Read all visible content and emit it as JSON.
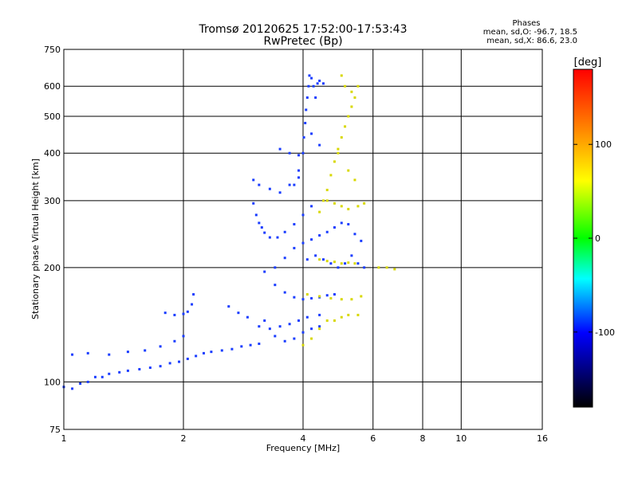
{
  "chart_data": {
    "type": "scatter",
    "title": "Tromsø 20120625 17:52:00-17:53:43",
    "subtitle": "RwPretec (Bp)",
    "xlabel": "Frequency [MHz]",
    "ylabel": "Stationary phase Virtual Height [km]",
    "x_scale": "log",
    "y_scale": "log",
    "xlim": [
      1,
      16
    ],
    "ylim": [
      75,
      750
    ],
    "x_ticks": [
      "1",
      "2",
      "4",
      "6",
      "8",
      "10",
      "16"
    ],
    "y_ticks": [
      "75",
      "100",
      "200",
      "300",
      "400",
      "500",
      "600",
      "750"
    ],
    "grid": true,
    "phase_stats": {
      "heading": "Phases",
      "line_o": "mean, sd,O: -96.7, 18.5",
      "line_x": "mean, sd,X:  86.6, 23.0"
    },
    "colorbar": {
      "label": "[deg]",
      "min": -180,
      "max": 180,
      "ticks": [
        "100",
        "0",
        "-100"
      ],
      "colors": [
        "#ff0000",
        "#ff8000",
        "#ffff00",
        "#00ff00",
        "#00ffff",
        "#0000ff",
        "#000000"
      ]
    },
    "series": [
      {
        "name": "O",
        "color": "#1a3dff",
        "points": [
          [
            1.0,
            97
          ],
          [
            1.05,
            96
          ],
          [
            1.1,
            99
          ],
          [
            1.15,
            100
          ],
          [
            1.2,
            103
          ],
          [
            1.25,
            103
          ],
          [
            1.3,
            105
          ],
          [
            1.38,
            106
          ],
          [
            1.45,
            107
          ],
          [
            1.55,
            108
          ],
          [
            1.65,
            109
          ],
          [
            1.75,
            110
          ],
          [
            1.85,
            112
          ],
          [
            1.95,
            113
          ],
          [
            2.05,
            115
          ],
          [
            2.15,
            117
          ],
          [
            2.25,
            119
          ],
          [
            2.35,
            120
          ],
          [
            2.5,
            121
          ],
          [
            2.65,
            122
          ],
          [
            2.8,
            124
          ],
          [
            2.95,
            125
          ],
          [
            3.1,
            126
          ],
          [
            1.05,
            118
          ],
          [
            1.15,
            119
          ],
          [
            1.3,
            118
          ],
          [
            1.45,
            120
          ],
          [
            1.6,
            121
          ],
          [
            1.75,
            124
          ],
          [
            1.9,
            128
          ],
          [
            2.0,
            132
          ],
          [
            1.8,
            152
          ],
          [
            1.9,
            150
          ],
          [
            2.0,
            151
          ],
          [
            2.05,
            153
          ],
          [
            2.1,
            160
          ],
          [
            2.12,
            170
          ],
          [
            2.6,
            158
          ],
          [
            2.75,
            152
          ],
          [
            2.9,
            148
          ],
          [
            3.1,
            140
          ],
          [
            3.3,
            138
          ],
          [
            3.5,
            140
          ],
          [
            3.7,
            142
          ],
          [
            3.9,
            145
          ],
          [
            4.1,
            148
          ],
          [
            4.4,
            150
          ],
          [
            3.0,
            295
          ],
          [
            3.05,
            275
          ],
          [
            3.1,
            262
          ],
          [
            3.15,
            255
          ],
          [
            3.2,
            247
          ],
          [
            3.3,
            240
          ],
          [
            3.45,
            240
          ],
          [
            3.6,
            248
          ],
          [
            3.8,
            260
          ],
          [
            4.0,
            275
          ],
          [
            4.2,
            290
          ],
          [
            3.0,
            340
          ],
          [
            3.1,
            330
          ],
          [
            3.3,
            322
          ],
          [
            3.5,
            315
          ],
          [
            3.7,
            330
          ],
          [
            3.9,
            345
          ],
          [
            3.2,
            195
          ],
          [
            3.4,
            180
          ],
          [
            3.6,
            172
          ],
          [
            3.8,
            167
          ],
          [
            4.0,
            165
          ],
          [
            4.2,
            166
          ],
          [
            4.4,
            167
          ],
          [
            4.6,
            169
          ],
          [
            4.8,
            170
          ],
          [
            3.4,
            200
          ],
          [
            3.6,
            212
          ],
          [
            3.8,
            225
          ],
          [
            4.0,
            232
          ],
          [
            4.2,
            237
          ],
          [
            4.4,
            243
          ],
          [
            4.6,
            248
          ],
          [
            4.8,
            255
          ],
          [
            5.0,
            262
          ],
          [
            5.2,
            260
          ],
          [
            5.4,
            245
          ],
          [
            5.6,
            235
          ],
          [
            4.1,
            210
          ],
          [
            4.3,
            215
          ],
          [
            4.5,
            210
          ],
          [
            4.7,
            205
          ],
          [
            4.9,
            200
          ],
          [
            5.1,
            205
          ],
          [
            5.3,
            215
          ],
          [
            5.5,
            205
          ],
          [
            5.7,
            200
          ],
          [
            3.8,
            330
          ],
          [
            3.9,
            360
          ],
          [
            4.0,
            400
          ],
          [
            4.02,
            440
          ],
          [
            4.05,
            480
          ],
          [
            4.07,
            520
          ],
          [
            4.1,
            560
          ],
          [
            4.13,
            600
          ],
          [
            4.15,
            640
          ],
          [
            4.2,
            630
          ],
          [
            4.25,
            600
          ],
          [
            4.3,
            560
          ],
          [
            4.35,
            610
          ],
          [
            4.4,
            620
          ],
          [
            4.5,
            610
          ],
          [
            3.5,
            410
          ],
          [
            3.7,
            400
          ],
          [
            3.9,
            395
          ],
          [
            4.2,
            450
          ],
          [
            4.4,
            420
          ],
          [
            3.2,
            145
          ],
          [
            3.4,
            132
          ],
          [
            3.6,
            128
          ],
          [
            3.8,
            130
          ],
          [
            4.0,
            135
          ],
          [
            4.2,
            138
          ],
          [
            4.4,
            140
          ]
        ]
      },
      {
        "name": "X",
        "color": "#d8d800",
        "points": [
          [
            4.4,
            280
          ],
          [
            4.5,
            300
          ],
          [
            4.6,
            320
          ],
          [
            4.7,
            350
          ],
          [
            4.8,
            380
          ],
          [
            4.9,
            410
          ],
          [
            5.0,
            440
          ],
          [
            5.1,
            470
          ],
          [
            5.2,
            500
          ],
          [
            5.3,
            530
          ],
          [
            5.4,
            560
          ],
          [
            5.5,
            600
          ],
          [
            4.4,
            210
          ],
          [
            4.6,
            208
          ],
          [
            4.8,
            207
          ],
          [
            5.0,
            205
          ],
          [
            5.2,
            206
          ],
          [
            5.4,
            205
          ],
          [
            4.6,
            300
          ],
          [
            4.8,
            295
          ],
          [
            5.0,
            290
          ],
          [
            5.2,
            285
          ],
          [
            5.5,
            290
          ],
          [
            5.7,
            295
          ],
          [
            4.1,
            170
          ],
          [
            4.4,
            168
          ],
          [
            4.7,
            166
          ],
          [
            5.0,
            165
          ],
          [
            5.3,
            165
          ],
          [
            5.6,
            168
          ],
          [
            4.0,
            125
          ],
          [
            4.2,
            130
          ],
          [
            4.4,
            138
          ],
          [
            4.6,
            145
          ],
          [
            4.8,
            145
          ],
          [
            5.0,
            148
          ],
          [
            5.2,
            150
          ],
          [
            5.5,
            150
          ],
          [
            5.0,
            640
          ],
          [
            5.1,
            600
          ],
          [
            5.3,
            580
          ],
          [
            4.9,
            400
          ],
          [
            5.2,
            360
          ],
          [
            5.4,
            340
          ],
          [
            6.2,
            200
          ],
          [
            6.5,
            200
          ],
          [
            6.8,
            198
          ]
        ]
      }
    ]
  }
}
